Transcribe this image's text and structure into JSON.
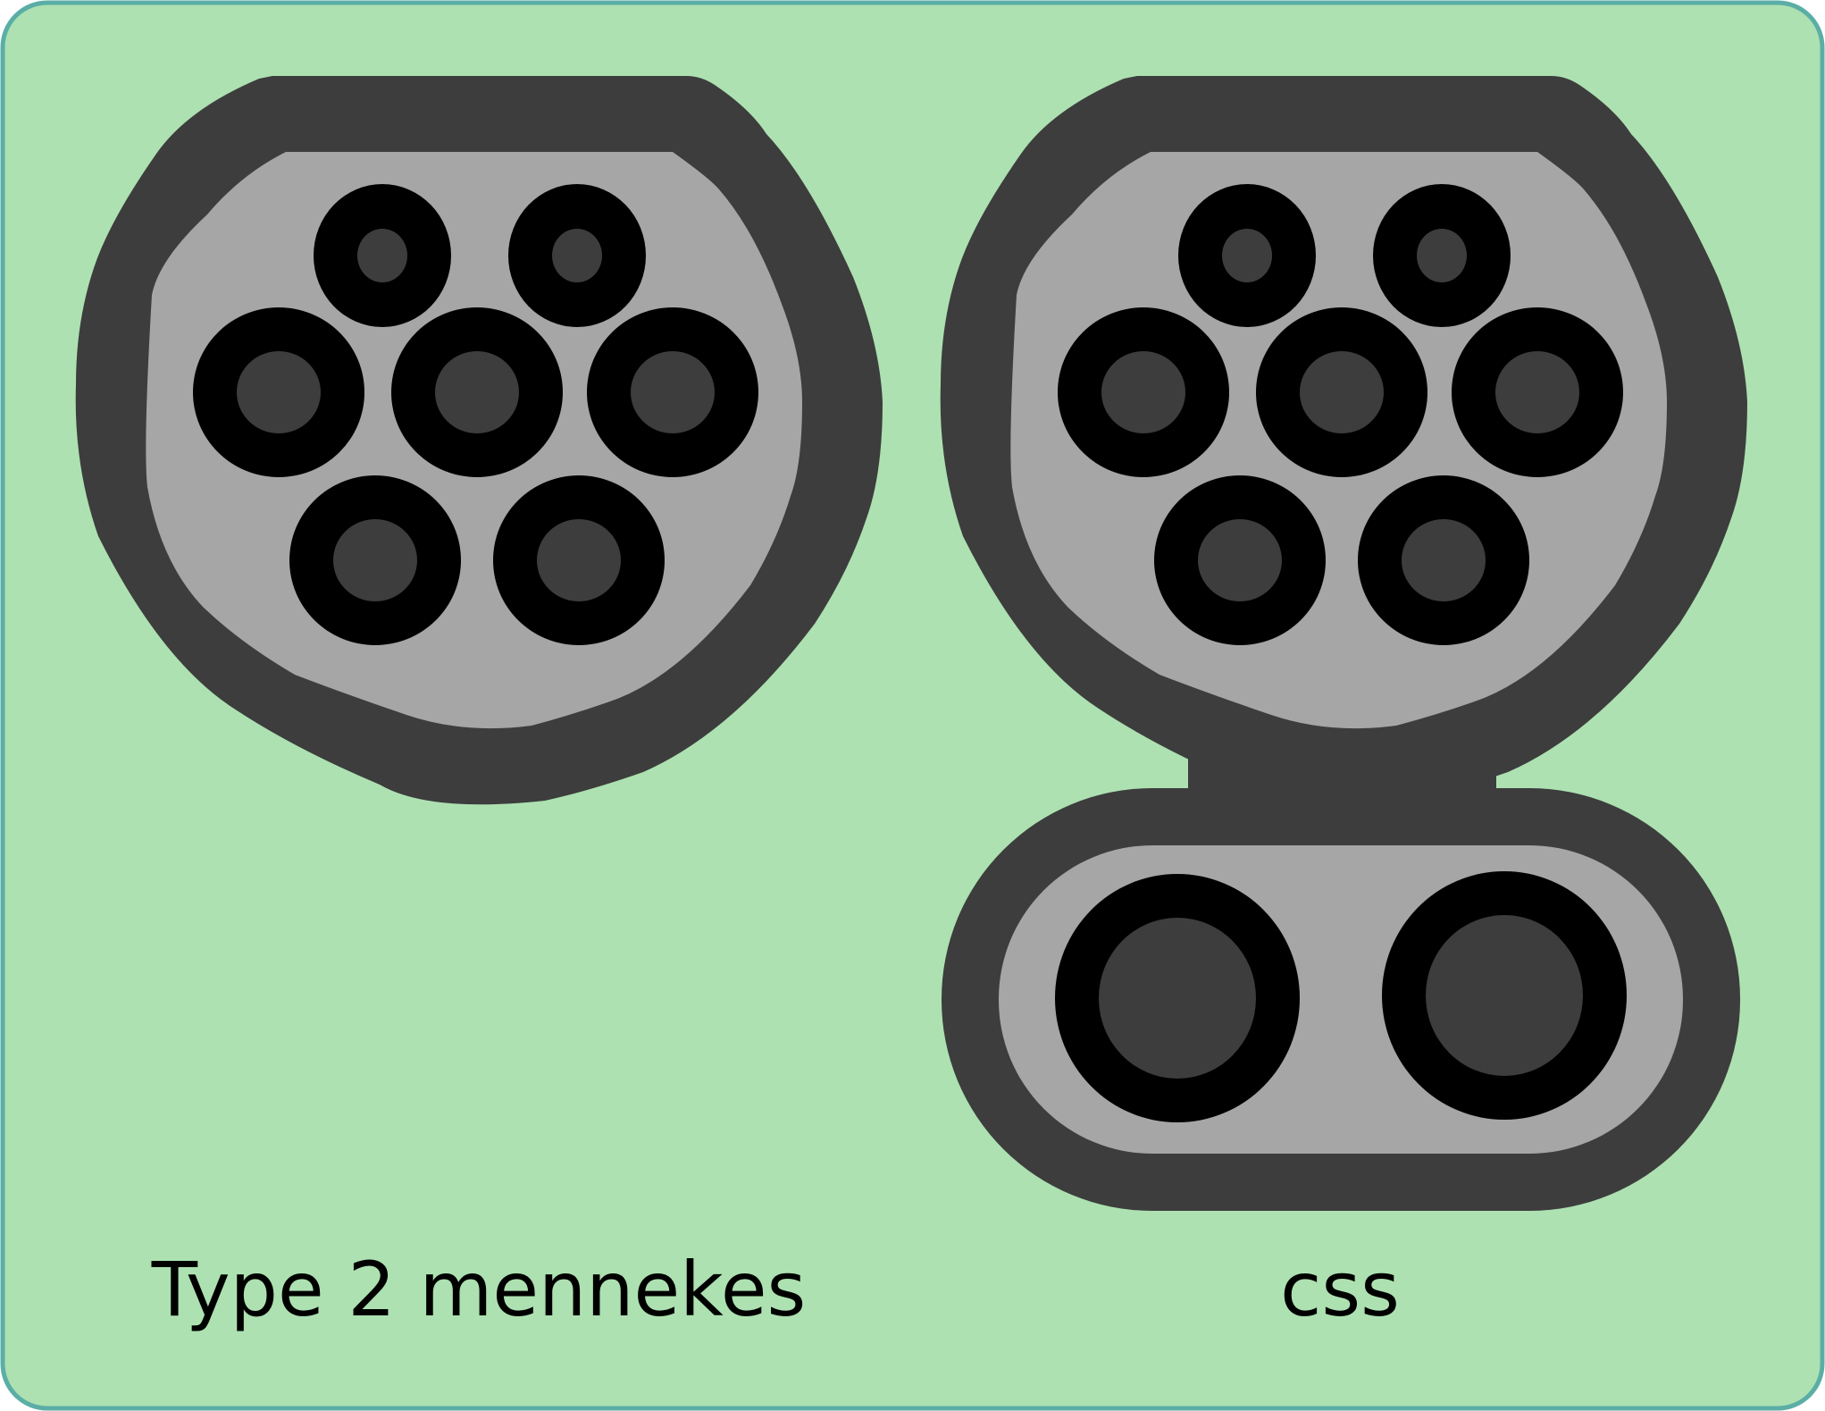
{
  "colors": {
    "background": "#ade1b1",
    "background_border": "#5aaea6",
    "housing": "#3d3d3d",
    "face": "#a6a6a6",
    "pin_ring": "#000000",
    "pin_core": "#3d3d3d"
  },
  "connectors": [
    {
      "id": "type2",
      "label": "Type 2 mennekes",
      "pins": {
        "small_signal": 2,
        "large_ac": 5,
        "dc_power": 0
      }
    },
    {
      "id": "ccs",
      "label": "css",
      "pins": {
        "small_signal": 2,
        "large_ac": 5,
        "dc_power": 2
      }
    }
  ]
}
